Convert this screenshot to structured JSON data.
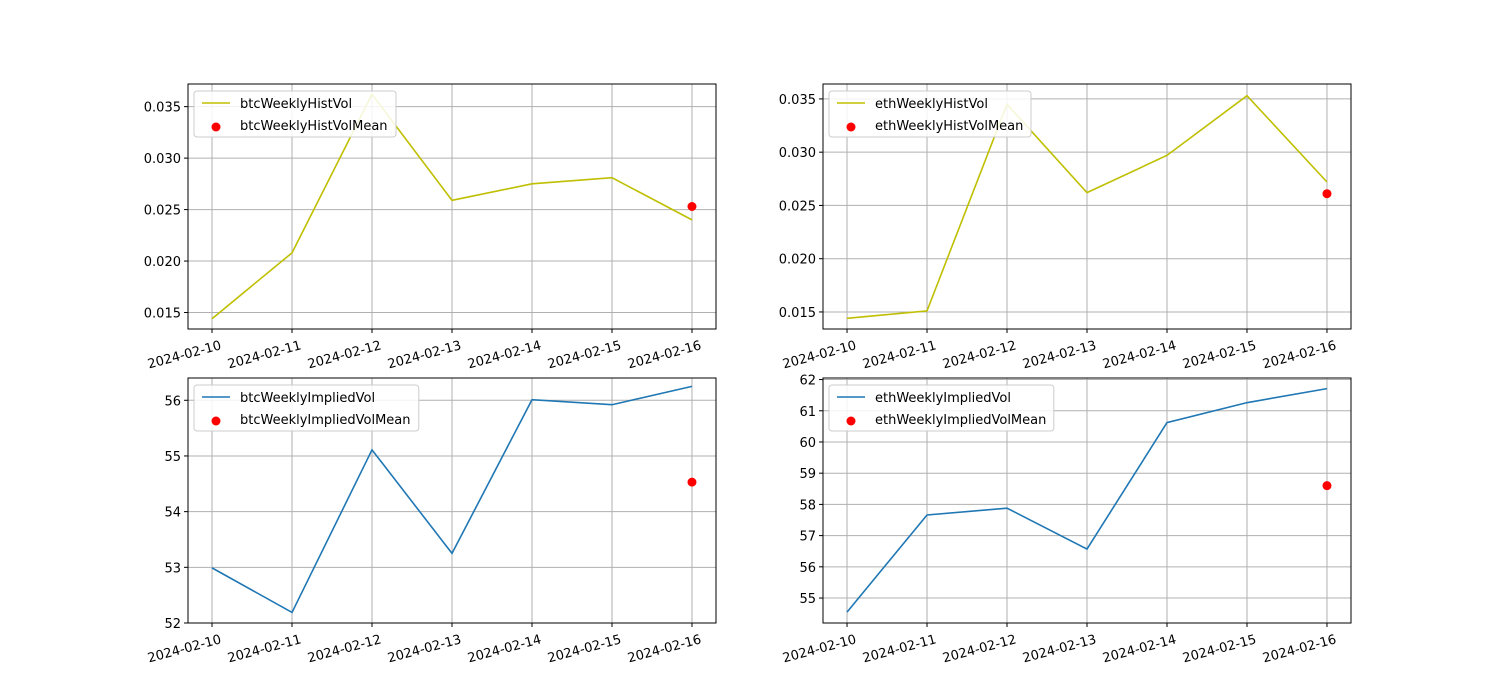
{
  "chart_data": [
    {
      "type": "line",
      "x": [
        "2024-02-10",
        "2024-02-11",
        "2024-02-12",
        "2024-02-13",
        "2024-02-14",
        "2024-02-15",
        "2024-02-16"
      ],
      "series": [
        {
          "name": "btcWeeklyHistVol",
          "kind": "line",
          "color": "#bfbf00",
          "values": [
            0.0144,
            0.0208,
            0.0362,
            0.0259,
            0.0275,
            0.0281,
            0.024
          ]
        },
        {
          "name": "btcWeeklyHistVolMean",
          "kind": "scatter",
          "color": "#ff0000",
          "points": [
            {
              "x": "2024-02-16",
              "y": 0.0253
            }
          ]
        }
      ],
      "yticks": [
        "0.015",
        "0.020",
        "0.025",
        "0.030",
        "0.035"
      ],
      "ylim": [
        0.0134,
        0.0372
      ],
      "grid": true,
      "legend": "top-left",
      "xtick_rotation": "15deg"
    },
    {
      "type": "line",
      "x": [
        "2024-02-10",
        "2024-02-11",
        "2024-02-12",
        "2024-02-13",
        "2024-02-14",
        "2024-02-15",
        "2024-02-16"
      ],
      "series": [
        {
          "name": "ethWeeklyHistVol",
          "kind": "line",
          "color": "#bfbf00",
          "values": [
            0.0144,
            0.0151,
            0.0345,
            0.0262,
            0.0297,
            0.0353,
            0.0272
          ]
        },
        {
          "name": "ethWeeklyHistVolMean",
          "kind": "scatter",
          "color": "#ff0000",
          "points": [
            {
              "x": "2024-02-16",
              "y": 0.0261
            }
          ]
        }
      ],
      "yticks": [
        "0.015",
        "0.020",
        "0.025",
        "0.030",
        "0.035"
      ],
      "ylim": [
        0.0134,
        0.0364
      ],
      "grid": true,
      "legend": "top-left",
      "xtick_rotation": "15deg"
    },
    {
      "type": "line",
      "x": [
        "2024-02-10",
        "2024-02-11",
        "2024-02-12",
        "2024-02-13",
        "2024-02-14",
        "2024-02-15",
        "2024-02-16"
      ],
      "series": [
        {
          "name": "btcWeeklyImpliedVol",
          "kind": "line",
          "color": "#1f77b4",
          "values": [
            52.99,
            52.19,
            55.11,
            53.25,
            56.01,
            55.92,
            56.25
          ]
        },
        {
          "name": "btcWeeklyImpliedVolMean",
          "kind": "scatter",
          "color": "#ff0000",
          "points": [
            {
              "x": "2024-02-16",
              "y": 54.53
            }
          ]
        }
      ],
      "yticks": [
        "52",
        "53",
        "54",
        "55",
        "56"
      ],
      "ylim": [
        52.0,
        56.4
      ],
      "grid": true,
      "legend": "top-left",
      "xtick_rotation": "15deg"
    },
    {
      "type": "line",
      "x": [
        "2024-02-10",
        "2024-02-11",
        "2024-02-12",
        "2024-02-13",
        "2024-02-14",
        "2024-02-15",
        "2024-02-16"
      ],
      "series": [
        {
          "name": "ethWeeklyImpliedVol",
          "kind": "line",
          "color": "#1f77b4",
          "values": [
            54.55,
            57.66,
            57.88,
            56.57,
            60.62,
            61.26,
            61.71
          ]
        },
        {
          "name": "ethWeeklyImpliedVolMean",
          "kind": "scatter",
          "color": "#ff0000",
          "points": [
            {
              "x": "2024-02-16",
              "y": 58.6
            }
          ]
        }
      ],
      "yticks": [
        "55",
        "56",
        "57",
        "58",
        "59",
        "60",
        "61",
        "62"
      ],
      "ylim": [
        54.2,
        62.05
      ],
      "grid": true,
      "legend": "top-left",
      "xtick_rotation": "15deg"
    }
  ]
}
